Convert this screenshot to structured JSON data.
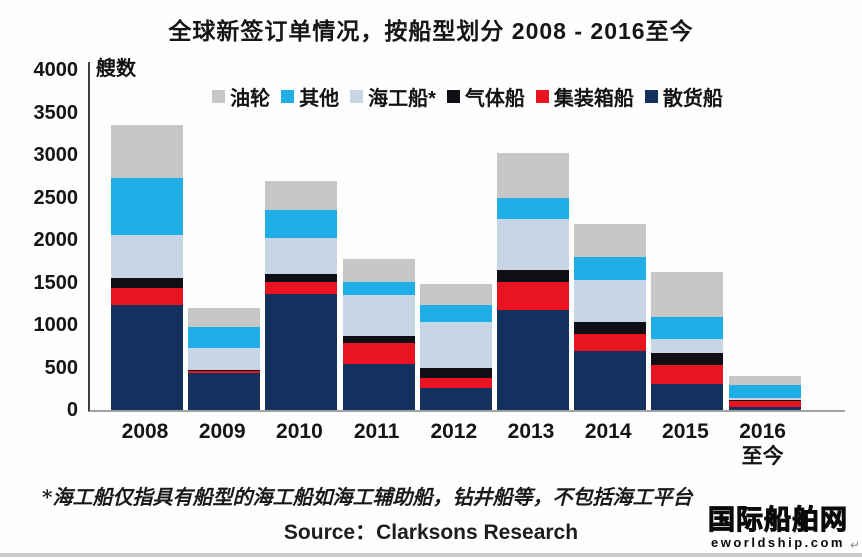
{
  "page": {
    "title": "全球新签订单情况，按船型划分 2008 - 2016至今",
    "y_axis_unit_label": "艘数",
    "footnote": "*海工船仅指具有船型的海工船如海工辅助船，钻井船等，不包括海工平台",
    "source_label": "Source：Clarksons Research",
    "logo_cn": "国际船舶网",
    "logo_en": "eworldship.com",
    "return_mark": "↵"
  },
  "chart_data": {
    "type": "bar",
    "stacked": true,
    "title": "全球新签订单情况，按船型划分 2008 - 2016至今",
    "xlabel": "",
    "ylabel": "艘数",
    "ylim": [
      0,
      4000
    ],
    "y_ticks": [
      4000,
      3500,
      3000,
      2500,
      2000,
      1500,
      1000,
      500,
      0
    ],
    "grid": false,
    "legend_position": "top",
    "categories": [
      "2008",
      "2009",
      "2010",
      "2011",
      "2012",
      "2013",
      "2014",
      "2015",
      "2016\n至今"
    ],
    "totals": [
      3350,
      1200,
      2700,
      1780,
      1480,
      3020,
      2190,
      1630,
      400
    ],
    "series": [
      {
        "name": "油轮",
        "color": "#c7c7c7",
        "values": [
          620,
          225,
          350,
          270,
          240,
          520,
          390,
          530,
          110
        ]
      },
      {
        "name": "其他",
        "color": "#1fafe6",
        "values": [
          670,
          245,
          330,
          160,
          200,
          250,
          270,
          260,
          150
        ]
      },
      {
        "name": "海工船*",
        "color": "#c8d5e4",
        "values": [
          510,
          260,
          420,
          480,
          550,
          600,
          490,
          170,
          20
        ]
      },
      {
        "name": "气体船",
        "color": "#0e0e14",
        "values": [
          120,
          10,
          90,
          80,
          110,
          140,
          140,
          140,
          10
        ]
      },
      {
        "name": "集装箱船",
        "color": "#ea1320",
        "values": [
          200,
          20,
          140,
          250,
          120,
          330,
          210,
          220,
          70
        ]
      },
      {
        "name": "散货船",
        "color": "#14305f",
        "values": [
          1230,
          440,
          1370,
          540,
          260,
          1180,
          690,
          310,
          40
        ]
      }
    ]
  }
}
